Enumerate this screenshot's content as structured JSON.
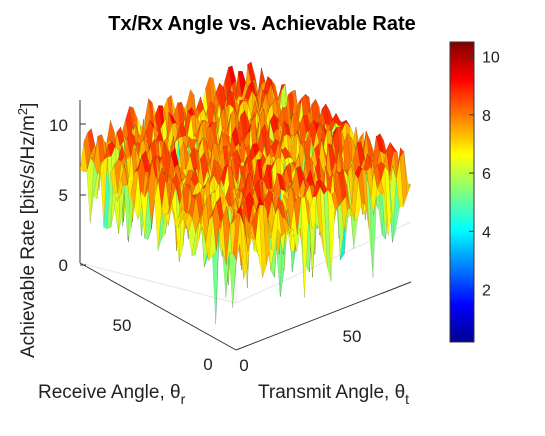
{
  "chart_data": {
    "type": "surface",
    "title": "Tx/Rx Angle vs. Achievable Rate",
    "xlabel": "Transmit Angle, θ",
    "xlabel_sub": "t",
    "ylabel": "Receive Angle, θ",
    "ylabel_sub": "r",
    "zlabel": "Achievable Rate [bits/s/Hz/m",
    "zlabel_sup": "2",
    "zlabel_end": "]",
    "x_ticks": [
      "0",
      "50"
    ],
    "y_ticks": [
      "0",
      "50"
    ],
    "z_ticks": [
      "0",
      "5",
      "10"
    ],
    "xlim": [
      0,
      90
    ],
    "ylim": [
      0,
      90
    ],
    "zlim": [
      0,
      12
    ],
    "colormap": "jet",
    "colorbar": {
      "ticks": [
        "2",
        "4",
        "6",
        "8",
        "10"
      ],
      "tick_values": [
        2,
        4,
        6,
        8,
        10
      ],
      "range": [
        0.2,
        10.5
      ]
    },
    "surface": {
      "typical_peak": 10,
      "typical_trough": 1,
      "note_values": "rapidly oscillating surface with peaks near 10 and troughs down to about 1"
    }
  }
}
